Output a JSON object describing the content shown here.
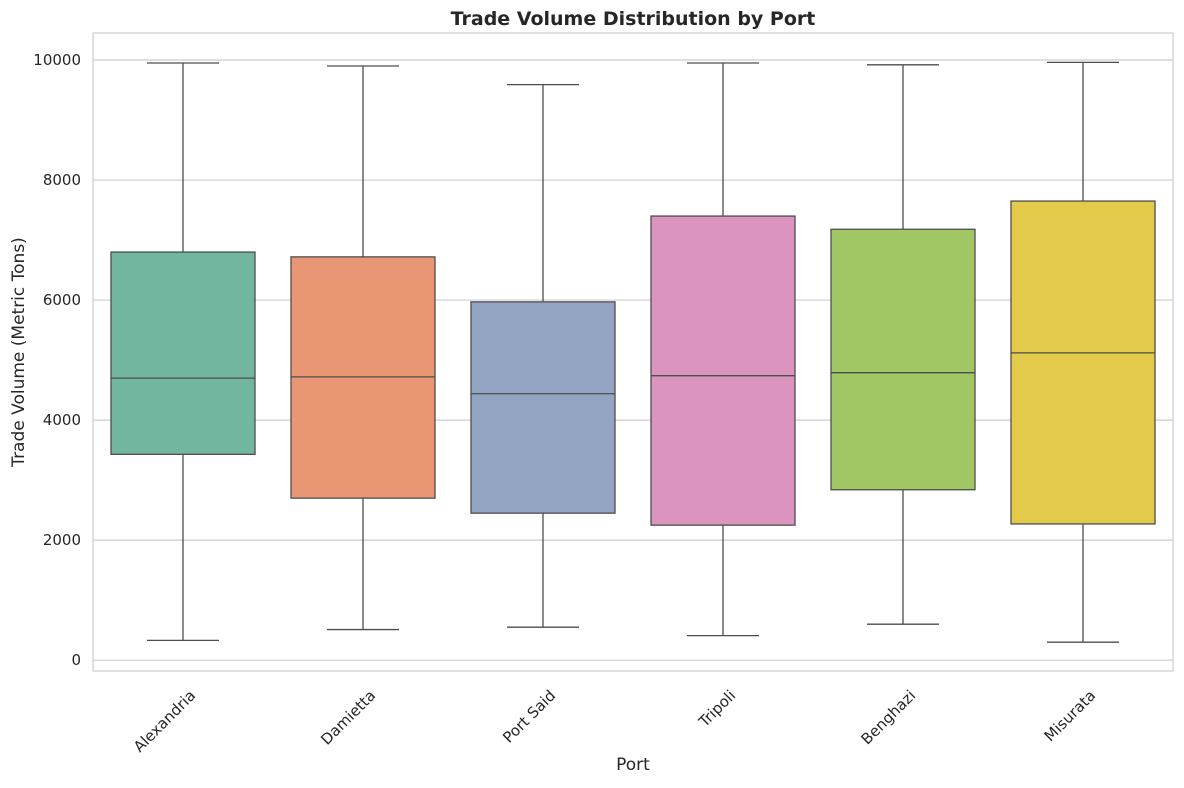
{
  "chart_data": {
    "type": "box",
    "title": "Trade Volume Distribution by Port",
    "xlabel": "Port",
    "ylabel": "Trade Volume (Metric Tons)",
    "ylim": [
      -180,
      10450
    ],
    "yticks": [
      0,
      2000,
      4000,
      6000,
      8000,
      10000
    ],
    "ytick_labels": [
      "0",
      "2000",
      "4000",
      "6000",
      "8000",
      "10000"
    ],
    "grid": true,
    "categories": [
      "Alexandria",
      "Damietta",
      "Port Said",
      "Tripoli",
      "Benghazi",
      "Misurata"
    ],
    "boxes": [
      {
        "category": "Alexandria",
        "min": 330,
        "q1": 3430,
        "median": 4700,
        "q3": 6800,
        "max": 9950,
        "color": "#72b6a0"
      },
      {
        "category": "Damietta",
        "min": 510,
        "q1": 2700,
        "median": 4720,
        "q3": 6720,
        "max": 9900,
        "color": "#e99675"
      },
      {
        "category": "Port Said",
        "min": 550,
        "q1": 2450,
        "median": 4440,
        "q3": 5970,
        "max": 9590,
        "color": "#94a5c3"
      },
      {
        "category": "Tripoli",
        "min": 410,
        "q1": 2250,
        "median": 4740,
        "q3": 7400,
        "max": 9950,
        "color": "#da94be"
      },
      {
        "category": "Benghazi",
        "min": 600,
        "q1": 2840,
        "median": 4790,
        "q3": 7180,
        "max": 9920,
        "color": "#a0c763"
      },
      {
        "category": "Misurata",
        "min": 300,
        "q1": 2270,
        "median": 5120,
        "q3": 7650,
        "max": 9960,
        "color": "#e4ca4b"
      }
    ]
  }
}
